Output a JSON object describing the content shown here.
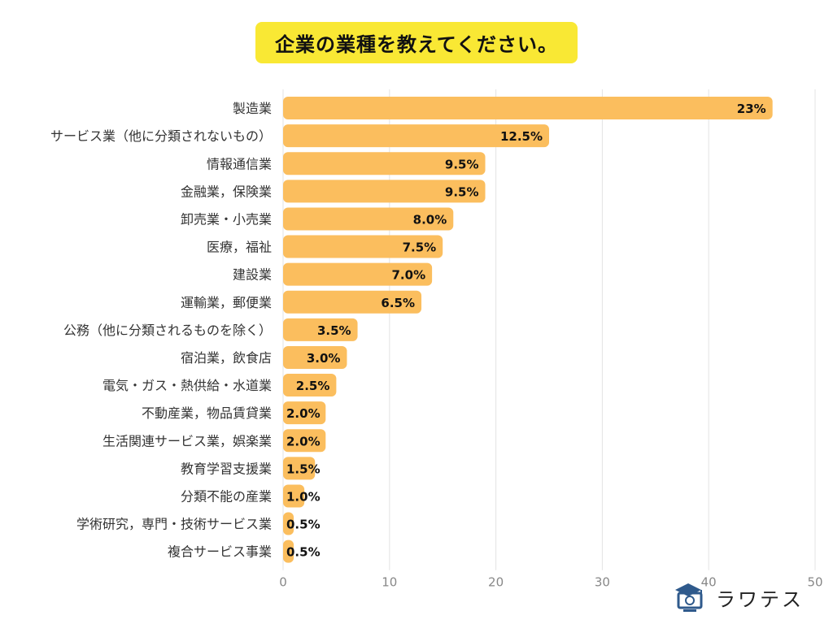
{
  "chart_data": {
    "type": "bar",
    "orientation": "horizontal",
    "title": "企業の業種を教えてください。",
    "categories": [
      "製造業",
      "サービス業（他に分類されないもの）",
      "情報通信業",
      "金融業，保険業",
      "卸売業・小売業",
      "医療，福祉",
      "建設業",
      "運輸業，郵便業",
      "公務（他に分類されるものを除く）",
      "宿泊業，飲食店",
      "電気・ガス・熱供給・水道業",
      "不動産業，物品賃貸業",
      "生活関連サービス業，娯楽業",
      "教育学習支援業",
      "分類不能の産業",
      "学術研究，専門・技術サービス業",
      "複合サービス事業"
    ],
    "values": [
      46,
      25,
      19,
      19,
      16,
      15,
      14,
      13,
      7,
      6,
      5,
      4,
      4,
      3,
      2,
      1,
      1
    ],
    "value_labels": [
      "23%",
      "12.5%",
      "9.5%",
      "9.5%",
      "8.0%",
      "7.5%",
      "7.0%",
      "6.5%",
      "3.5%",
      "3.0%",
      "2.5%",
      "2.0%",
      "2.0%",
      "1.5%",
      "1.0%",
      "0.5%",
      "0.5%"
    ],
    "xlim": [
      0,
      50
    ],
    "xticks": [
      "0",
      "10",
      "20",
      "30",
      "40",
      "50"
    ],
    "grid": true,
    "bar_color": "#fbbe5e",
    "title_bg": "#f9e834"
  },
  "logo": {
    "text": "ラワテス",
    "accent": "#2f5a8c"
  }
}
